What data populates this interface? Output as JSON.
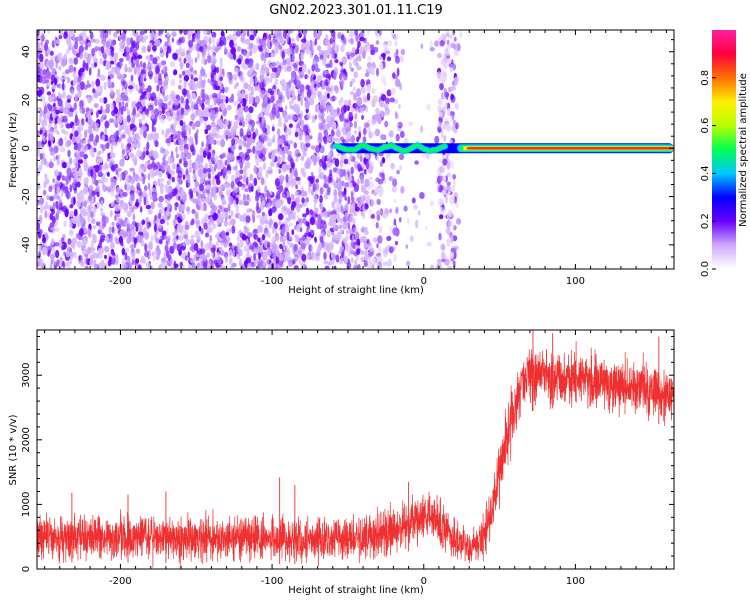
{
  "title": "GN02.2023.301.01.11.C19",
  "chart_data": [
    {
      "type": "heatmap",
      "xlabel": "Height of straight line (km)",
      "ylabel": "Frequency (Hz)",
      "xlim": [
        -255,
        165
      ],
      "ylim": [
        -50,
        49
      ],
      "xticks": [
        -200,
        -100,
        0,
        100
      ],
      "yticks": [
        -40,
        -20,
        0,
        20,
        40
      ],
      "colorbar": {
        "label": "Normalized spectral amplitude",
        "ticks": [
          0.0,
          0.2,
          0.4,
          0.6,
          0.8
        ],
        "range": [
          0,
          1
        ],
        "colors": [
          "#ffffff",
          "#cfa8ff",
          "#6a00ff",
          "#0000ff",
          "#00c8ff",
          "#00ff50",
          "#b8ff00",
          "#ffee00",
          "#ff7000",
          "#ff0040",
          "#ff20a0"
        ]
      },
      "features": {
        "noise_region_x": [
          -255,
          25
        ],
        "dense_noise_x": [
          -255,
          -40
        ],
        "bright_vertical_band_x": [
          10,
          22
        ],
        "carrier_frequency_hz": 0,
        "carrier_start_x": -58,
        "carrier_wobble_range_x": [
          -58,
          15
        ]
      }
    },
    {
      "type": "line",
      "xlabel": "Height of straight line (km)",
      "ylabel": "SNR (10 * v/v)",
      "xlim": [
        -255,
        165
      ],
      "ylim": [
        0,
        3700
      ],
      "xticks": [
        -200,
        -100,
        0,
        100
      ],
      "yticks": [
        0,
        1000,
        2000,
        3000
      ],
      "series": [
        {
          "color": "#f03030",
          "envelope": [
            {
              "x": -255,
              "low": 100,
              "high": 900
            },
            {
              "x": -200,
              "low": 100,
              "high": 900
            },
            {
              "x": -150,
              "low": 90,
              "high": 880
            },
            {
              "x": -100,
              "low": 80,
              "high": 870
            },
            {
              "x": -50,
              "low": 70,
              "high": 860
            },
            {
              "x": -20,
              "low": 150,
              "high": 1000
            },
            {
              "x": 0,
              "low": 400,
              "high": 1250
            },
            {
              "x": 10,
              "low": 300,
              "high": 1150
            },
            {
              "x": 20,
              "low": 120,
              "high": 800
            },
            {
              "x": 30,
              "low": 0,
              "high": 600
            },
            {
              "x": 40,
              "low": 150,
              "high": 900
            },
            {
              "x": 45,
              "low": 400,
              "high": 1400
            },
            {
              "x": 55,
              "low": 1500,
              "high": 2700
            },
            {
              "x": 65,
              "low": 2400,
              "high": 3400
            },
            {
              "x": 80,
              "low": 2500,
              "high": 3500
            },
            {
              "x": 100,
              "low": 2450,
              "high": 3450
            },
            {
              "x": 130,
              "low": 2350,
              "high": 3350
            },
            {
              "x": 165,
              "low": 2200,
              "high": 3200
            }
          ],
          "spikes": [
            {
              "x": -232,
              "y": 1180
            },
            {
              "x": -195,
              "y": 1150
            },
            {
              "x": -170,
              "y": 1200
            },
            {
              "x": -95,
              "y": 1420
            },
            {
              "x": -85,
              "y": 1300
            },
            {
              "x": -10,
              "y": 1350
            },
            {
              "x": 72,
              "y": 3700
            },
            {
              "x": 85,
              "y": 3650
            },
            {
              "x": 155,
              "y": 3600
            }
          ]
        }
      ]
    }
  ]
}
